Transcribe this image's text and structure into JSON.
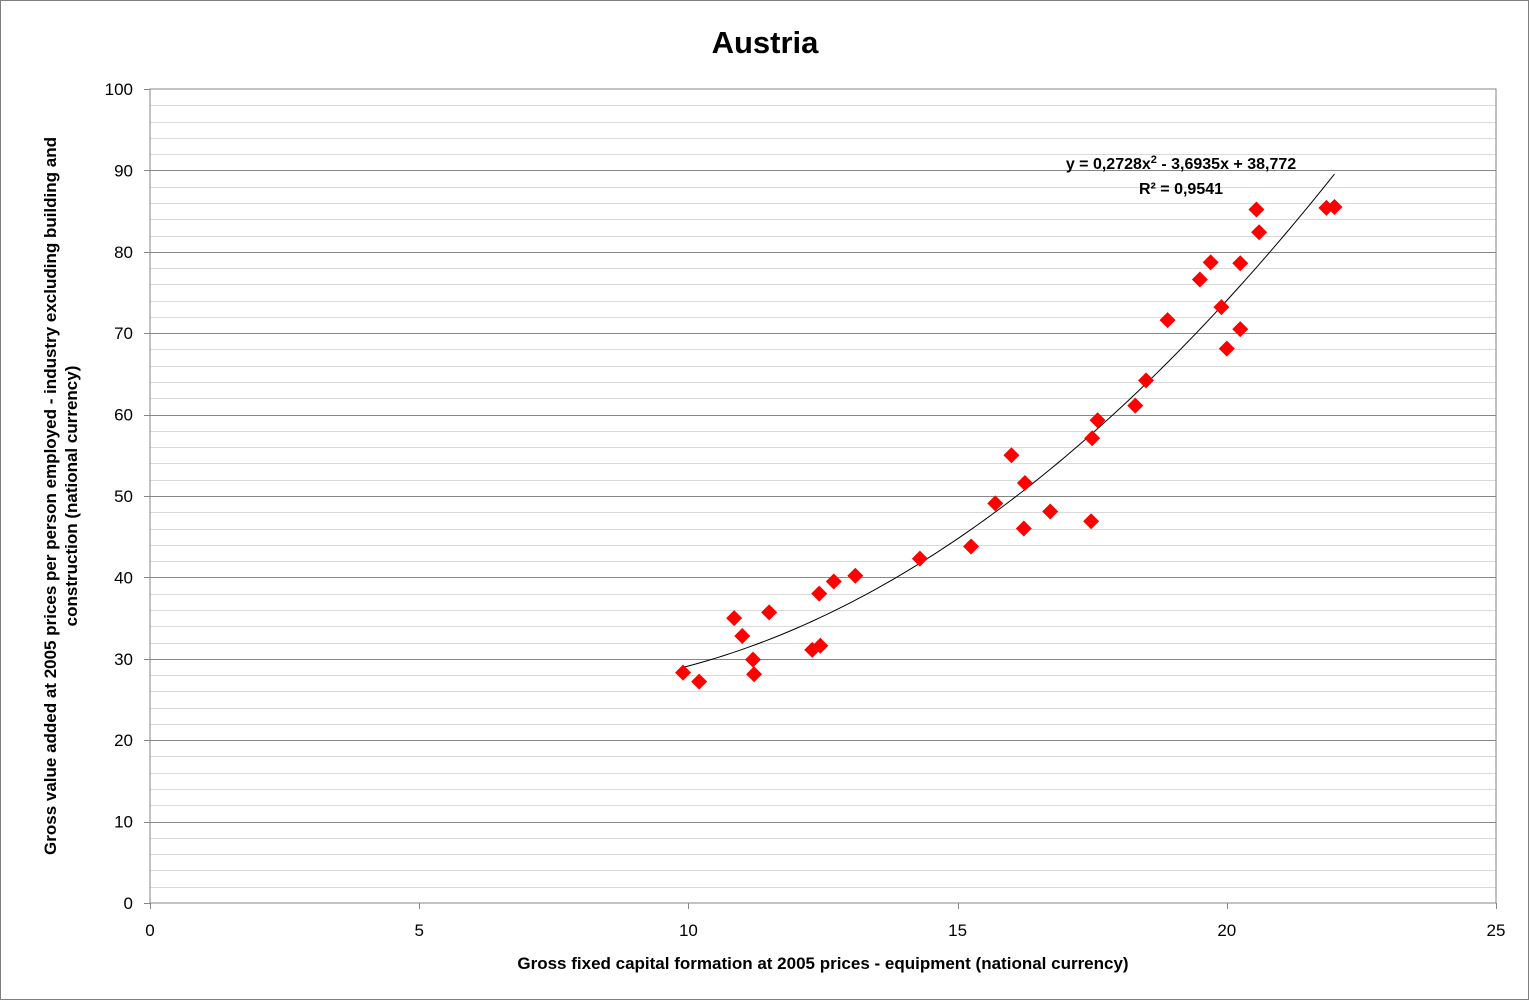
{
  "chart_data": {
    "type": "scatter",
    "title": "Austria",
    "xlabel": "Gross fixed capital formation at 2005 prices - equipment (national currency)",
    "ylabel_lines": [
      "Gross value added at 2005 prices per person employed - industry excluding building and",
      "construction (national currency)"
    ],
    "xlim": [
      0,
      25
    ],
    "ylim": [
      0,
      100
    ],
    "x_ticks": [
      0,
      5,
      10,
      15,
      20,
      25
    ],
    "y_ticks": [
      0,
      10,
      20,
      30,
      40,
      50,
      60,
      70,
      80,
      90,
      100
    ],
    "y_minor_step": 2,
    "grid": true,
    "legend": "none",
    "marker": "diamond",
    "marker_color": "#ff0000",
    "points": [
      [
        9.9,
        28.3
      ],
      [
        10.2,
        27.2
      ],
      [
        10.85,
        35.0
      ],
      [
        11.0,
        32.8
      ],
      [
        11.2,
        29.9
      ],
      [
        11.22,
        28.1
      ],
      [
        11.5,
        35.7
      ],
      [
        12.3,
        31.1
      ],
      [
        12.45,
        31.6
      ],
      [
        12.43,
        38.0
      ],
      [
        12.7,
        39.5
      ],
      [
        13.1,
        40.2
      ],
      [
        14.3,
        42.3
      ],
      [
        15.25,
        43.8
      ],
      [
        15.7,
        49.1
      ],
      [
        16.0,
        55.0
      ],
      [
        16.25,
        51.6
      ],
      [
        16.23,
        46.0
      ],
      [
        16.72,
        48.1
      ],
      [
        17.48,
        46.9
      ],
      [
        17.5,
        57.1
      ],
      [
        17.6,
        59.3
      ],
      [
        18.3,
        61.1
      ],
      [
        18.5,
        64.2
      ],
      [
        18.9,
        71.6
      ],
      [
        19.5,
        76.6
      ],
      [
        19.7,
        78.7
      ],
      [
        19.9,
        73.2
      ],
      [
        20.0,
        68.1
      ],
      [
        20.25,
        78.6
      ],
      [
        20.25,
        70.5
      ],
      [
        20.55,
        85.2
      ],
      [
        20.6,
        82.4
      ],
      [
        21.85,
        85.4
      ],
      [
        22.0,
        85.5
      ]
    ],
    "trendline": {
      "type": "polynomial",
      "coefficients": [
        0.2728,
        -3.6935,
        38.772
      ],
      "x_range": [
        9.9,
        22.0
      ],
      "color": "#000000",
      "equation_prefix": "y = 0,2728x",
      "equation_exponent": "2",
      "equation_suffix": " - 3,6935x + 38,772",
      "r_squared": "R² = 0,9541"
    }
  }
}
